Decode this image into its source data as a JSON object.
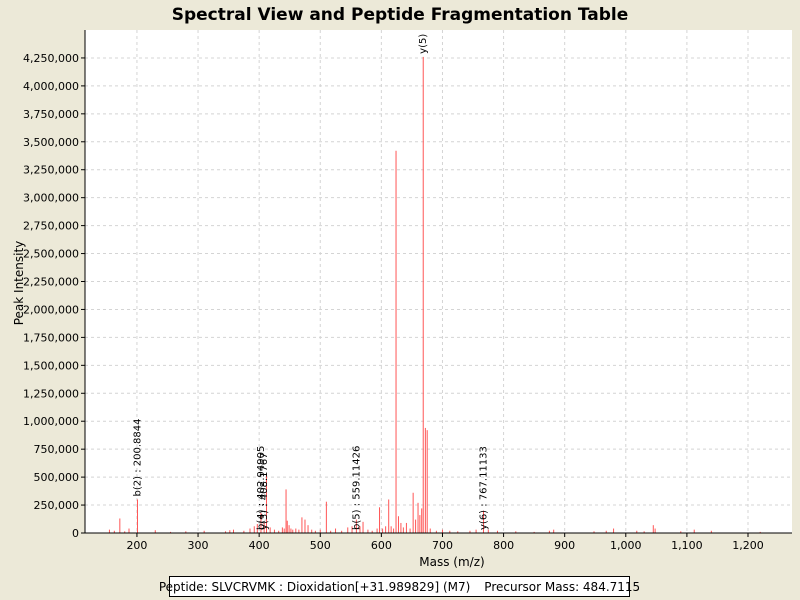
{
  "chart_data": {
    "type": "bar",
    "title": "Spectral View and Peptide Fragmentation Table",
    "xlabel": "Mass (m/z)",
    "ylabel": "Peak Intensity",
    "xlim": [
      115,
      1272
    ],
    "ylim": [
      0,
      4500000
    ],
    "x_ticks": [
      200,
      300,
      400,
      500,
      600,
      700,
      800,
      900,
      1000,
      1100,
      1200
    ],
    "x_tick_labels": [
      "200",
      "300",
      "400",
      "500",
      "600",
      "700",
      "800",
      "900",
      "1,000",
      "1,100",
      "1,200"
    ],
    "y_ticks": [
      0,
      250000,
      500000,
      750000,
      1000000,
      1250000,
      1500000,
      1750000,
      2000000,
      2250000,
      2500000,
      2750000,
      3000000,
      3250000,
      3500000,
      3750000,
      4000000,
      4250000
    ],
    "y_tick_labels": [
      "0",
      "250,000",
      "500,000",
      "750,000",
      "1,000,000",
      "1,250,000",
      "1,500,000",
      "1,750,000",
      "2,000,000",
      "2,250,000",
      "2,500,000",
      "2,750,000",
      "3,000,000",
      "3,250,000",
      "3,500,000",
      "3,750,000",
      "4,000,000",
      "4,250,000"
    ],
    "grid": true,
    "peaks": [
      {
        "x": 155,
        "y": 30000
      },
      {
        "x": 163,
        "y": 20000
      },
      {
        "x": 172,
        "y": 130000
      },
      {
        "x": 180,
        "y": 15000
      },
      {
        "x": 187,
        "y": 40000
      },
      {
        "x": 200.8844,
        "y": 300000
      },
      {
        "x": 230,
        "y": 25000
      },
      {
        "x": 255,
        "y": 10000
      },
      {
        "x": 280,
        "y": 15000
      },
      {
        "x": 310,
        "y": 20000
      },
      {
        "x": 345,
        "y": 15000
      },
      {
        "x": 352,
        "y": 25000
      },
      {
        "x": 358,
        "y": 30000
      },
      {
        "x": 375,
        "y": 20000
      },
      {
        "x": 385,
        "y": 40000
      },
      {
        "x": 392,
        "y": 60000
      },
      {
        "x": 397,
        "y": 80000
      },
      {
        "x": 402.94905,
        "y": 180000
      },
      {
        "x": 408.1767,
        "y": 95000
      },
      {
        "x": 412,
        "y": 530000
      },
      {
        "x": 418,
        "y": 50000
      },
      {
        "x": 425,
        "y": 30000
      },
      {
        "x": 432,
        "y": 20000
      },
      {
        "x": 438,
        "y": 50000
      },
      {
        "x": 441,
        "y": 40000
      },
      {
        "x": 444,
        "y": 390000
      },
      {
        "x": 446,
        "y": 110000
      },
      {
        "x": 449,
        "y": 70000
      },
      {
        "x": 452,
        "y": 40000
      },
      {
        "x": 455,
        "y": 30000
      },
      {
        "x": 460,
        "y": 40000
      },
      {
        "x": 465,
        "y": 30000
      },
      {
        "x": 470,
        "y": 140000
      },
      {
        "x": 475,
        "y": 120000
      },
      {
        "x": 480,
        "y": 70000
      },
      {
        "x": 486,
        "y": 30000
      },
      {
        "x": 492,
        "y": 20000
      },
      {
        "x": 500,
        "y": 30000
      },
      {
        "x": 510,
        "y": 280000
      },
      {
        "x": 517,
        "y": 20000
      },
      {
        "x": 525,
        "y": 40000
      },
      {
        "x": 535,
        "y": 20000
      },
      {
        "x": 545,
        "y": 50000
      },
      {
        "x": 552,
        "y": 60000
      },
      {
        "x": 559.11426,
        "y": 120000
      },
      {
        "x": 565,
        "y": 60000
      },
      {
        "x": 570,
        "y": 100000
      },
      {
        "x": 578,
        "y": 30000
      },
      {
        "x": 585,
        "y": 20000
      },
      {
        "x": 593,
        "y": 40000
      },
      {
        "x": 597,
        "y": 230000
      },
      {
        "x": 602,
        "y": 40000
      },
      {
        "x": 607,
        "y": 60000
      },
      {
        "x": 612,
        "y": 300000
      },
      {
        "x": 616,
        "y": 60000
      },
      {
        "x": 620,
        "y": 40000
      },
      {
        "x": 624,
        "y": 3420000
      },
      {
        "x": 628,
        "y": 150000
      },
      {
        "x": 632,
        "y": 90000
      },
      {
        "x": 636,
        "y": 50000
      },
      {
        "x": 641,
        "y": 90000
      },
      {
        "x": 647,
        "y": 40000
      },
      {
        "x": 652,
        "y": 360000
      },
      {
        "x": 656,
        "y": 120000
      },
      {
        "x": 660,
        "y": 270000
      },
      {
        "x": 663,
        "y": 160000
      },
      {
        "x": 666,
        "y": 220000
      },
      {
        "x": 668.5,
        "y": 4260000
      },
      {
        "x": 672,
        "y": 940000
      },
      {
        "x": 675,
        "y": 920000
      },
      {
        "x": 680,
        "y": 40000
      },
      {
        "x": 690,
        "y": 20000
      },
      {
        "x": 700,
        "y": 30000
      },
      {
        "x": 712,
        "y": 20000
      },
      {
        "x": 725,
        "y": 15000
      },
      {
        "x": 745,
        "y": 20000
      },
      {
        "x": 755,
        "y": 30000
      },
      {
        "x": 767.11133,
        "y": 200000
      },
      {
        "x": 775,
        "y": 30000
      },
      {
        "x": 790,
        "y": 20000
      },
      {
        "x": 820,
        "y": 15000
      },
      {
        "x": 850,
        "y": 10000
      },
      {
        "x": 875,
        "y": 20000
      },
      {
        "x": 882,
        "y": 30000
      },
      {
        "x": 948,
        "y": 15000
      },
      {
        "x": 968,
        "y": 20000
      },
      {
        "x": 980,
        "y": 40000
      },
      {
        "x": 1018,
        "y": 20000
      },
      {
        "x": 1030,
        "y": 15000
      },
      {
        "x": 1045,
        "y": 70000
      },
      {
        "x": 1048,
        "y": 40000
      },
      {
        "x": 1090,
        "y": 15000
      },
      {
        "x": 1112,
        "y": 30000
      },
      {
        "x": 1140,
        "y": 20000
      },
      {
        "x": 1220,
        "y": 10000
      }
    ],
    "annotations": [
      {
        "x": 200.8844,
        "y": 300000,
        "text": "b(2) : 200.8844"
      },
      {
        "x": 402.94905,
        "y": 0,
        "text": "b(4) : 402.94905"
      },
      {
        "x": 408.1767,
        "y": 0,
        "text": "y(3) : 408.1767"
      },
      {
        "x": 559.11426,
        "y": 0,
        "text": "b(5) : 559.11426"
      },
      {
        "x": 668.5,
        "y": 4260000,
        "text": "y(5)"
      },
      {
        "x": 767.11133,
        "y": 0,
        "text": "y(6) : 767.11133"
      }
    ],
    "colors": {
      "peak": "#ff5555",
      "grid": "#d4d4d4",
      "plot_bg": "#ffffff",
      "page_bg": "#ece9d8"
    }
  },
  "legend": {
    "peptide_text": "Peptide: SLVCRVMK : Dioxidation[+31.989829] (M7)",
    "precursor_text": "Precursor Mass: 484.7115"
  }
}
